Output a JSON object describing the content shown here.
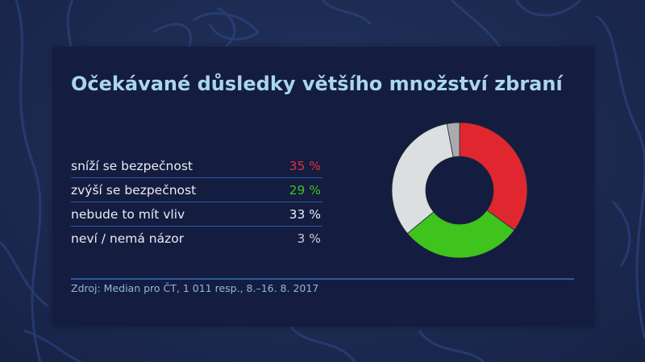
{
  "title": "Očekávané důsledky většího množství zbraní",
  "rows": [
    {
      "label": "sníží se bezpečnost",
      "value": "35 %",
      "color": "#e0323a"
    },
    {
      "label": "zvýší se bezpečnost",
      "value": "29 %",
      "color": "#3ec41c"
    },
    {
      "label": "nebude to mít vliv",
      "value": "33 %",
      "color": "#e8ecf2"
    },
    {
      "label": "neví / nemá názor",
      "value": "3 %",
      "color": "#c9cdd4"
    }
  ],
  "source": "Zdroj: Median pro ČT, 1 011 resp., 8.–16. 8. 2017",
  "chart_data": {
    "type": "pie",
    "subtype": "donut",
    "title": "Očekávané důsledky většího množství zbraní",
    "categories": [
      "sníží se bezpečnost",
      "zvýší se bezpečnost",
      "nebude to mít vliv",
      "neví / nemá názor"
    ],
    "values": [
      35,
      29,
      33,
      3
    ],
    "colors": [
      "#e0272f",
      "#3ec41c",
      "#dcdfe0",
      "#a9abae"
    ],
    "unit": "%",
    "start_angle": "12 o'clock, clockwise",
    "source": "Zdroj: Median pro ČT, 1 011 resp., 8.–16. 8. 2017"
  }
}
